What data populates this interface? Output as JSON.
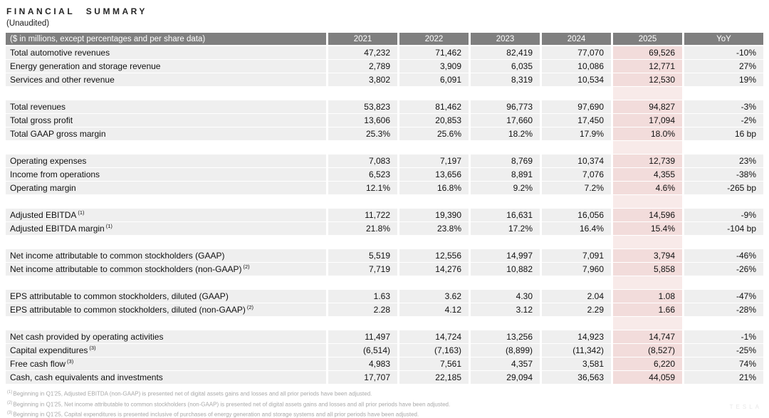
{
  "page": {
    "title": "FINANCIAL SUMMARY",
    "subtitle": "(Unaudited)",
    "watermark": "TESLA"
  },
  "table": {
    "header": {
      "label": "($ in millions, except percentages and per share data)",
      "columns": [
        "2021",
        "2022",
        "2023",
        "2024",
        "2025",
        "YoY"
      ],
      "highlight_column": "2025"
    },
    "colors": {
      "header_bg": "#7f7f7f",
      "header_text": "#ffffff",
      "row_bg": "#efefef",
      "highlight_bg": "#f2dcdb",
      "highlight_gap_bg": "#f8eae9"
    },
    "sections": [
      {
        "rows": [
          {
            "label": "Total automotive revenues",
            "sup": "",
            "values": [
              "47,232",
              "71,462",
              "82,419",
              "77,070",
              "69,526",
              "-10%"
            ]
          },
          {
            "label": "Energy generation and storage revenue",
            "sup": "",
            "values": [
              "2,789",
              "3,909",
              "6,035",
              "10,086",
              "12,771",
              "27%"
            ]
          },
          {
            "label": "Services and other revenue",
            "sup": "",
            "values": [
              "3,802",
              "6,091",
              "8,319",
              "10,534",
              "12,530",
              "19%"
            ]
          }
        ]
      },
      {
        "rows": [
          {
            "label": "Total revenues",
            "sup": "",
            "values": [
              "53,823",
              "81,462",
              "96,773",
              "97,690",
              "94,827",
              "-3%"
            ]
          },
          {
            "label": "Total gross profit",
            "sup": "",
            "values": [
              "13,606",
              "20,853",
              "17,660",
              "17,450",
              "17,094",
              "-2%"
            ]
          },
          {
            "label": "Total GAAP gross margin",
            "sup": "",
            "values": [
              "25.3%",
              "25.6%",
              "18.2%",
              "17.9%",
              "18.0%",
              "16 bp"
            ]
          }
        ]
      },
      {
        "rows": [
          {
            "label": "Operating expenses",
            "sup": "",
            "values": [
              "7,083",
              "7,197",
              "8,769",
              "10,374",
              "12,739",
              "23%"
            ]
          },
          {
            "label": "Income from operations",
            "sup": "",
            "values": [
              "6,523",
              "13,656",
              "8,891",
              "7,076",
              "4,355",
              "-38%"
            ]
          },
          {
            "label": "Operating margin",
            "sup": "",
            "values": [
              "12.1%",
              "16.8%",
              "9.2%",
              "7.2%",
              "4.6%",
              "-265 bp"
            ]
          }
        ]
      },
      {
        "rows": [
          {
            "label": "Adjusted EBITDA",
            "sup": "(1)",
            "values": [
              "11,722",
              "19,390",
              "16,631",
              "16,056",
              "14,596",
              "-9%"
            ]
          },
          {
            "label": "Adjusted EBITDA margin",
            "sup": "(1)",
            "values": [
              "21.8%",
              "23.8%",
              "17.2%",
              "16.4%",
              "15.4%",
              "-104 bp"
            ]
          }
        ]
      },
      {
        "rows": [
          {
            "label": "Net income attributable to common stockholders (GAAP)",
            "sup": "",
            "values": [
              "5,519",
              "12,556",
              "14,997",
              "7,091",
              "3,794",
              "-46%"
            ]
          },
          {
            "label": "Net income attributable to common stockholders (non-GAAP)",
            "sup": "(2)",
            "values": [
              "7,719",
              "14,276",
              "10,882",
              "7,960",
              "5,858",
              "-26%"
            ]
          }
        ]
      },
      {
        "rows": [
          {
            "label": "EPS attributable to common stockholders, diluted (GAAP)",
            "sup": "",
            "values": [
              "1.63",
              "3.62",
              "4.30",
              "2.04",
              "1.08",
              "-47%"
            ]
          },
          {
            "label": "EPS attributable to common stockholders, diluted (non-GAAP)",
            "sup": "(2)",
            "values": [
              "2.28",
              "4.12",
              "3.12",
              "2.29",
              "1.66",
              "-28%"
            ]
          }
        ]
      },
      {
        "rows": [
          {
            "label": "Net cash provided by operating activities",
            "sup": "",
            "values": [
              "11,497",
              "14,724",
              "13,256",
              "14,923",
              "14,747",
              "-1%"
            ]
          },
          {
            "label": "Capital expenditures",
            "sup": "(3)",
            "values": [
              "(6,514)",
              "(7,163)",
              "(8,899)",
              "(11,342)",
              "(8,527)",
              "-25%"
            ]
          },
          {
            "label": "Free cash flow",
            "sup": "(3)",
            "values": [
              "4,983",
              "7,561",
              "4,357",
              "3,581",
              "6,220",
              "74%"
            ]
          },
          {
            "label": "Cash, cash equivalents and investments",
            "sup": "",
            "values": [
              "17,707",
              "22,185",
              "29,094",
              "36,563",
              "44,059",
              "21%"
            ]
          }
        ]
      }
    ]
  },
  "footnotes": [
    {
      "sup": "(1)",
      "text": "Beginning in Q1'25, Adjusted EBITDA (non-GAAP) is presented net of digital assets gains and losses and all prior periods have been adjusted."
    },
    {
      "sup": "(2)",
      "text": "Beginning in Q1'25, Net income attributable to common stockholders (non-GAAP) is presented net of digital assets gains and losses and all prior periods have been adjusted."
    },
    {
      "sup": "(3)",
      "text": "Beginning in Q1'25, Capital expenditures is presented inclusive of purchases of energy generation and storage systems and all prior periods have been adjusted."
    }
  ]
}
